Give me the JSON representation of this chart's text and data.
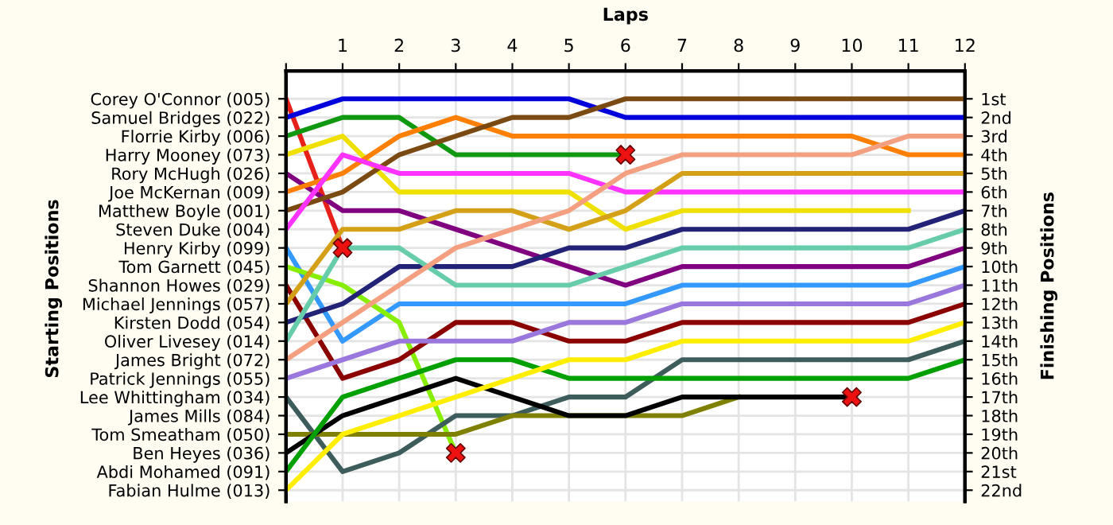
{
  "chart_data": {
    "type": "line",
    "xlabel": "Laps",
    "annotations": [
      "Starting Positions"
    ],
    "y2label": "Finishing Positions",
    "x": [
      0,
      1,
      2,
      3,
      4,
      5,
      6,
      7,
      8,
      9,
      10,
      11,
      12
    ],
    "xlim": [
      0,
      12
    ],
    "xticks": [
      {
        "value": 0,
        "label": null
      },
      1,
      2,
      3,
      4,
      5,
      6,
      7,
      8,
      9,
      10,
      11,
      12
    ],
    "y_categories": [
      "Corey O'Connor (005)",
      "Samuel Bridges (022)",
      "Florrie Kirby (006)",
      "Harry Mooney (073)",
      "Rory McHugh (026)",
      "Joe McKernan (009)",
      "Matthew Boyle (001)",
      "Steven Duke (004)",
      "Henry Kirby (099)",
      "Tom Garnett (045)",
      "Shannon Howes (029)",
      "Michael Jennings (057)",
      "Kirsten Dodd (054)",
      "Oliver Livesey (014)",
      "James Bright (072)",
      "Patrick Jennings (055)",
      "Lee Whittingham (034)",
      "James Mills (084)",
      "Tom Smeatham (050)",
      "Ben Heyes (036)",
      "Abdi Mohamed (091)",
      "Fabian Hulme (013)"
    ],
    "y2lim": [
      22.6,
      -0.5
    ],
    "y2ticks": [
      {
        "value": 1,
        "label": "1st"
      },
      {
        "value": 2,
        "label": "2nd"
      },
      {
        "value": 3,
        "label": "3rd"
      },
      {
        "value": 4,
        "label": "4th"
      },
      {
        "value": 5,
        "label": "5th"
      },
      {
        "value": 6,
        "label": "6th"
      },
      {
        "value": 7,
        "label": "7th"
      },
      {
        "value": 8,
        "label": "8th"
      },
      {
        "value": 9,
        "label": "9th"
      },
      {
        "value": 10,
        "label": "10th"
      },
      {
        "value": 11,
        "label": "11th"
      },
      {
        "value": 12,
        "label": "12th"
      },
      {
        "value": 13,
        "label": "13th"
      },
      {
        "value": 14,
        "label": "14th"
      },
      {
        "value": 15,
        "label": "15th"
      },
      {
        "value": 16,
        "label": "16th"
      },
      {
        "value": 17,
        "label": "17th"
      },
      {
        "value": 18,
        "label": "18th"
      },
      {
        "value": 19,
        "label": "19th"
      },
      {
        "value": 20,
        "label": "20th"
      },
      {
        "value": 21,
        "label": "21st"
      },
      {
        "value": 22,
        "label": "22nd"
      }
    ],
    "grid": true,
    "marker": "none",
    "line_style": "solid",
    "series": [
      {
        "axis": "y2",
        "color": "#e8201a",
        "values": [
          1,
          9,
          null,
          null,
          null,
          null,
          null,
          null,
          null,
          null,
          null,
          null,
          null
        ]
      },
      {
        "axis": "y2",
        "color": "#0000dd",
        "values": [
          2,
          1,
          1,
          1,
          1,
          1,
          2,
          2,
          2,
          2,
          2,
          2,
          2
        ]
      },
      {
        "axis": "y2",
        "color": "#109910",
        "values": [
          3,
          2,
          2,
          4,
          4,
          4,
          4,
          null,
          null,
          null,
          null,
          null,
          null
        ]
      },
      {
        "axis": "y2",
        "color": "#f0e000",
        "values": [
          4,
          3,
          6,
          6,
          6,
          6,
          8,
          7,
          7,
          7,
          7,
          7,
          null
        ]
      },
      {
        "axis": "y2",
        "color": "#800080",
        "values": [
          5,
          7,
          7,
          8,
          9,
          10,
          11,
          10,
          10,
          10,
          10,
          10,
          9
        ]
      },
      {
        "axis": "y2",
        "color": "#ff8000",
        "values": [
          6,
          5,
          3,
          2,
          3,
          3,
          3,
          3,
          3,
          3,
          3,
          4,
          4
        ]
      },
      {
        "axis": "y2",
        "color": "#7b4a12",
        "values": [
          7,
          6,
          4,
          3,
          2,
          2,
          1,
          1,
          1,
          1,
          1,
          1,
          1
        ]
      },
      {
        "axis": "y2",
        "color": "#ff33ff",
        "values": [
          8,
          4,
          5,
          5,
          5,
          5,
          6,
          6,
          6,
          6,
          6,
          6,
          6
        ]
      },
      {
        "axis": "y2",
        "color": "#3399ff",
        "values": [
          9,
          14,
          12,
          12,
          12,
          12,
          12,
          11,
          11,
          11,
          11,
          11,
          10
        ]
      },
      {
        "axis": "y2",
        "color": "#88ee00",
        "values": [
          10,
          11,
          13,
          20,
          null,
          null,
          null,
          null,
          null,
          null,
          null,
          null,
          null
        ]
      },
      {
        "axis": "y2",
        "color": "#8b0000",
        "values": [
          11,
          16,
          15,
          13,
          13,
          14,
          14,
          13,
          13,
          13,
          13,
          13,
          12
        ]
      },
      {
        "axis": "y2",
        "color": "#d4a017",
        "values": [
          12,
          8,
          8,
          7,
          7,
          8,
          7,
          5,
          5,
          5,
          5,
          5,
          5
        ]
      },
      {
        "axis": "y2",
        "color": "#222277",
        "values": [
          13,
          12,
          10,
          10,
          10,
          9,
          9,
          8,
          8,
          8,
          8,
          8,
          7
        ]
      },
      {
        "axis": "y2",
        "color": "#66ccaa",
        "values": [
          14,
          9,
          9,
          11,
          11,
          11,
          10,
          9,
          9,
          9,
          9,
          9,
          8
        ]
      },
      {
        "axis": "y2",
        "color": "#f4a080",
        "values": [
          15,
          13,
          11,
          9,
          8,
          7,
          5,
          4,
          4,
          4,
          4,
          3,
          3
        ]
      },
      {
        "axis": "y2",
        "color": "#9977dd",
        "values": [
          16,
          15,
          14,
          14,
          14,
          13,
          13,
          12,
          12,
          12,
          12,
          12,
          11
        ]
      },
      {
        "axis": "y2",
        "color": "#3d5c5c",
        "values": [
          17,
          21,
          20,
          18,
          18,
          17,
          17,
          15,
          15,
          15,
          15,
          15,
          14
        ]
      },
      {
        "axis": "y2",
        "color": "#808000",
        "values": [
          19,
          19,
          19,
          19,
          18,
          18,
          18,
          18,
          17,
          null,
          null,
          null,
          null
        ]
      },
      {
        "axis": "y2",
        "color": "#000000",
        "values": [
          20,
          18,
          17,
          16,
          17,
          18,
          18,
          17,
          17,
          17,
          17,
          null,
          null
        ]
      },
      {
        "axis": "y2",
        "color": "#00a000",
        "values": [
          21,
          17,
          16,
          15,
          15,
          16,
          16,
          16,
          16,
          16,
          16,
          16,
          15
        ]
      },
      {
        "axis": "y2",
        "color": "#ffee00",
        "values": [
          22,
          19,
          18,
          17,
          16,
          15,
          15,
          14,
          14,
          14,
          14,
          14,
          13
        ]
      },
      {
        "axis": "y2",
        "type": "scatter",
        "marker": "cross",
        "color": "#ee1111",
        "x": [
          1,
          3,
          6,
          10
        ],
        "values": [
          9,
          20,
          4,
          17
        ]
      }
    ]
  }
}
